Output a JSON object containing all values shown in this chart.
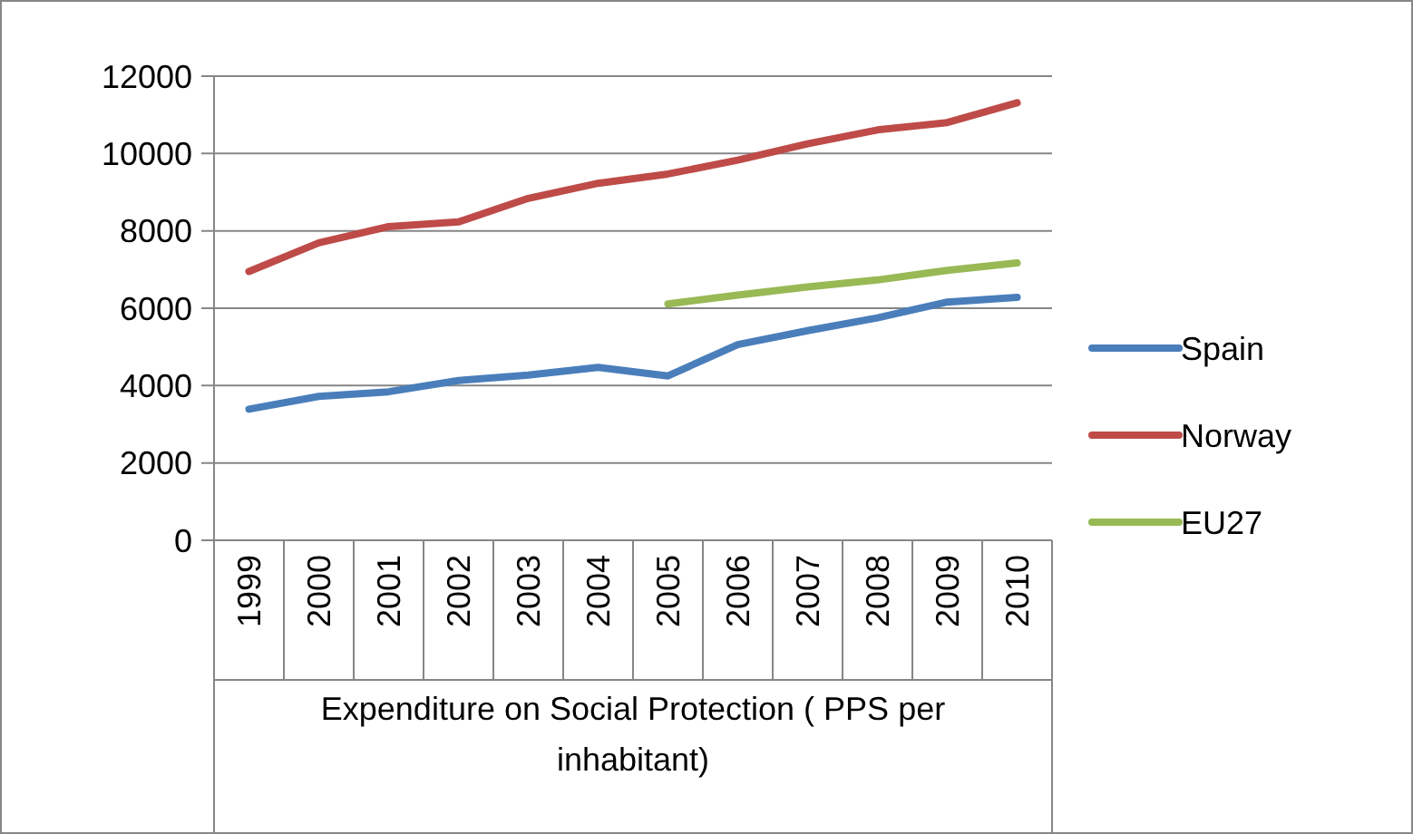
{
  "chart_data": {
    "type": "line",
    "xlabel": "Expenditure on Social Protection ( PPS per inhabitant)",
    "categories": [
      "1999",
      "2000",
      "2001",
      "2002",
      "2003",
      "2004",
      "2005",
      "2006",
      "2007",
      "2008",
      "2009",
      "2010"
    ],
    "series": [
      {
        "name": "Spain",
        "color": "#4a7ebb",
        "values": [
          3390,
          3720,
          3840,
          4130,
          4270,
          4470,
          4250,
          5060,
          5420,
          5750,
          6160,
          6280
        ]
      },
      {
        "name": "Norway",
        "color": "#be4b48",
        "values": [
          6950,
          7690,
          8110,
          8230,
          8840,
          9230,
          9470,
          9830,
          10250,
          10610,
          10800,
          11310
        ]
      },
      {
        "name": "EU27",
        "color": "#98b954",
        "values": [
          null,
          null,
          null,
          null,
          null,
          null,
          6110,
          6340,
          6550,
          6730,
          6980,
          7170
        ]
      }
    ],
    "ylim": [
      0,
      12000
    ],
    "yticks": [
      0,
      2000,
      4000,
      6000,
      8000,
      10000,
      12000
    ],
    "grid": "y",
    "legend": "right",
    "marker": "none",
    "line_style": "solid"
  }
}
